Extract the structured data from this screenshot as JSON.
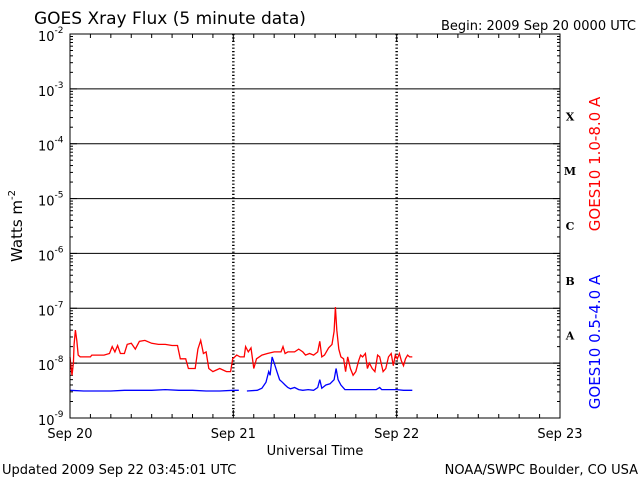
{
  "chart_data": {
    "type": "line",
    "title": "GOES Xray Flux (5 minute data)",
    "begin_label": "Begin:  2009 Sep 20 0000 UTC",
    "xlabel": "Universal Time",
    "ylabel": "Watts m",
    "ylabel_exp": "-2",
    "y_scale": "log",
    "ylim": [
      1e-09,
      0.01
    ],
    "xlim": [
      0,
      72
    ],
    "x_unit": "hours since 2009 Sep 20 0000 UTC",
    "x_ticks": [
      {
        "x": 0,
        "label": "Sep 20"
      },
      {
        "x": 24,
        "label": "Sep 21"
      },
      {
        "x": 48,
        "label": "Sep 22"
      },
      {
        "x": 72,
        "label": "Sep 23"
      }
    ],
    "y_ticks": [
      {
        "exp": -2,
        "label": "10",
        "sup": "-2"
      },
      {
        "exp": -3,
        "label": "10",
        "sup": "-3"
      },
      {
        "exp": -4,
        "label": "10",
        "sup": "-4"
      },
      {
        "exp": -5,
        "label": "10",
        "sup": "-5"
      },
      {
        "exp": -6,
        "label": "10",
        "sup": "-6"
      },
      {
        "exp": -7,
        "label": "10",
        "sup": "-7"
      },
      {
        "exp": -8,
        "label": "10",
        "sup": "-8"
      },
      {
        "exp": -9,
        "label": "10",
        "sup": "-9"
      }
    ],
    "flare_classes": [
      {
        "label": "X",
        "band_low_exp": -4
      },
      {
        "label": "M",
        "band_low_exp": -5
      },
      {
        "label": "C",
        "band_low_exp": -6
      },
      {
        "label": "B",
        "band_low_exp": -7
      },
      {
        "label": "A",
        "band_low_exp": -8
      }
    ],
    "series": [
      {
        "name": "GOES10 1.0-8.0 A",
        "color": "#ff0000",
        "points": [
          [
            0.0,
            1.3e-08
          ],
          [
            0.3,
            6e-09
          ],
          [
            0.5,
            1e-08
          ],
          [
            0.6,
            2.2e-08
          ],
          [
            0.8,
            4e-08
          ],
          [
            1.0,
            2.6e-08
          ],
          [
            1.2,
            1.4e-08
          ],
          [
            1.5,
            1.3e-08
          ],
          [
            2.5,
            1.3e-08
          ],
          [
            3.0,
            1.3e-08
          ],
          [
            3.2,
            1.4e-08
          ],
          [
            4.0,
            1.4e-08
          ],
          [
            5.0,
            1.4e-08
          ],
          [
            5.8,
            1.5e-08
          ],
          [
            6.2,
            2e-08
          ],
          [
            6.6,
            1.6e-08
          ],
          [
            7.0,
            2.1e-08
          ],
          [
            7.4,
            1.5e-08
          ],
          [
            8.0,
            1.5e-08
          ],
          [
            8.4,
            2.2e-08
          ],
          [
            9.0,
            2.3e-08
          ],
          [
            9.6,
            1.8e-08
          ],
          [
            10.2,
            2.5e-08
          ],
          [
            11.0,
            2.6e-08
          ],
          [
            12.0,
            2.3e-08
          ],
          [
            13.0,
            2.2e-08
          ],
          [
            14.0,
            2.2e-08
          ],
          [
            15.0,
            2.1e-08
          ],
          [
            15.8,
            2.1e-08
          ],
          [
            16.2,
            1.2e-08
          ],
          [
            17.0,
            1.2e-08
          ],
          [
            17.4,
            8e-09
          ],
          [
            18.4,
            8e-09
          ],
          [
            18.8,
            1.8e-08
          ],
          [
            19.2,
            2.6e-08
          ],
          [
            19.6,
            1.5e-08
          ],
          [
            20.0,
            1.6e-08
          ],
          [
            20.4,
            8e-09
          ],
          [
            21.0,
            7e-09
          ],
          [
            22.0,
            8e-09
          ],
          [
            23.0,
            7e-09
          ],
          [
            23.6,
            7e-09
          ],
          [
            23.9,
            1.2e-08
          ],
          [
            24.5,
            1.4e-08
          ],
          [
            25.0,
            1.3e-08
          ],
          [
            25.6,
            1.3e-08
          ],
          [
            25.8,
            2e-08
          ],
          [
            26.2,
            1.6e-08
          ],
          [
            26.6,
            1.9e-08
          ],
          [
            27.0,
            8e-09
          ],
          [
            27.4,
            1.2e-08
          ],
          [
            28.2,
            1.4e-08
          ],
          [
            29.0,
            1.5e-08
          ],
          [
            30.0,
            1.6e-08
          ],
          [
            31.0,
            1.6e-08
          ],
          [
            31.3,
            2e-08
          ],
          [
            31.6,
            1.5e-08
          ],
          [
            32.0,
            1.6e-08
          ],
          [
            33.0,
            1.6e-08
          ],
          [
            33.6,
            1.8e-08
          ],
          [
            34.2,
            1.6e-08
          ],
          [
            34.6,
            1.4e-08
          ],
          [
            35.2,
            1.5e-08
          ],
          [
            35.8,
            1.4e-08
          ],
          [
            36.4,
            1.6e-08
          ],
          [
            36.7,
            2.5e-08
          ],
          [
            37.0,
            1.3e-08
          ],
          [
            37.4,
            1.4e-08
          ],
          [
            38.0,
            1.9e-08
          ],
          [
            38.5,
            2.2e-08
          ],
          [
            38.8,
            3.8e-08
          ],
          [
            39.0,
            1.05e-07
          ],
          [
            39.2,
            4e-08
          ],
          [
            39.5,
            1.8e-08
          ],
          [
            39.8,
            1.3e-08
          ],
          [
            40.2,
            1.2e-08
          ],
          [
            40.5,
            7e-09
          ],
          [
            40.8,
            1.3e-08
          ],
          [
            41.2,
            8e-09
          ],
          [
            41.6,
            6e-09
          ],
          [
            42.0,
            7e-09
          ],
          [
            42.4,
            1.1e-08
          ],
          [
            42.7,
            1.4e-08
          ],
          [
            43.0,
            1.3e-08
          ],
          [
            43.4,
            1.5e-08
          ],
          [
            43.7,
            8e-09
          ],
          [
            44.0,
            1e-08
          ],
          [
            44.4,
            8e-09
          ],
          [
            44.8,
            7e-09
          ],
          [
            45.2,
            1.4e-08
          ],
          [
            45.5,
            1.3e-08
          ],
          [
            46.0,
            7e-09
          ],
          [
            46.4,
            8e-09
          ],
          [
            46.8,
            1.3e-08
          ],
          [
            47.2,
            1.5e-08
          ],
          [
            47.5,
            9e-09
          ],
          [
            47.8,
            1.4e-08
          ],
          [
            48.1,
            1.2e-08
          ],
          [
            48.4,
            1.5e-08
          ],
          [
            48.7,
            1.1e-08
          ],
          [
            49.0,
            9e-09
          ],
          [
            49.3,
            1.2e-08
          ],
          [
            49.6,
            1.4e-08
          ],
          [
            49.9,
            1.3e-08
          ],
          [
            50.3,
            1.3e-08
          ]
        ]
      },
      {
        "name": "GOES10 0.5-4.0 A",
        "color": "#0000ff",
        "points": [
          [
            0.0,
            3.2e-09
          ],
          [
            2.0,
            3.1e-09
          ],
          [
            4.0,
            3.1e-09
          ],
          [
            6.0,
            3.1e-09
          ],
          [
            8.0,
            3.2e-09
          ],
          [
            10.0,
            3.2e-09
          ],
          [
            12.0,
            3.2e-09
          ],
          [
            14.0,
            3.3e-09
          ],
          [
            16.0,
            3.2e-09
          ],
          [
            18.0,
            3.2e-09
          ],
          [
            20.0,
            3.1e-09
          ],
          [
            22.0,
            3.1e-09
          ],
          [
            24.0,
            3.2e-09
          ],
          [
            24.8,
            3.2e-09
          ],
          [
            25.2,
            null
          ],
          [
            26.0,
            3.1e-09
          ],
          [
            27.5,
            3.2e-09
          ],
          [
            28.2,
            3.5e-09
          ],
          [
            28.8,
            4.5e-09
          ],
          [
            29.2,
            7e-09
          ],
          [
            29.4,
            6e-09
          ],
          [
            29.7,
            1.3e-08
          ],
          [
            30.0,
            1e-08
          ],
          [
            30.4,
            7e-09
          ],
          [
            30.8,
            5e-09
          ],
          [
            31.2,
            4.5e-09
          ],
          [
            31.6,
            4e-09
          ],
          [
            32.0,
            3.6e-09
          ],
          [
            32.4,
            3.4e-09
          ],
          [
            33.0,
            3.6e-09
          ],
          [
            33.6,
            3.3e-09
          ],
          [
            34.2,
            3.2e-09
          ],
          [
            35.0,
            3.3e-09
          ],
          [
            35.8,
            3.2e-09
          ],
          [
            36.4,
            3.6e-09
          ],
          [
            36.7,
            5e-09
          ],
          [
            37.0,
            3.5e-09
          ],
          [
            37.6,
            4e-09
          ],
          [
            38.2,
            4.2e-09
          ],
          [
            38.8,
            5e-09
          ],
          [
            39.1,
            8e-09
          ],
          [
            39.4,
            5e-09
          ],
          [
            39.8,
            4e-09
          ],
          [
            40.4,
            3.3e-09
          ],
          [
            41.0,
            3.3e-09
          ],
          [
            42.0,
            3.3e-09
          ],
          [
            43.0,
            3.3e-09
          ],
          [
            44.0,
            3.3e-09
          ],
          [
            45.0,
            3.3e-09
          ],
          [
            45.5,
            3.6e-09
          ],
          [
            45.8,
            3.3e-09
          ],
          [
            47.0,
            3.3e-09
          ],
          [
            48.0,
            3.3e-09
          ],
          [
            49.0,
            3.2e-09
          ],
          [
            50.3,
            3.2e-09
          ]
        ]
      }
    ]
  },
  "footer": {
    "updated": "Updated 2009 Sep 22 03:45:01 UTC",
    "source": "NOAA/SWPC Boulder, CO USA"
  }
}
